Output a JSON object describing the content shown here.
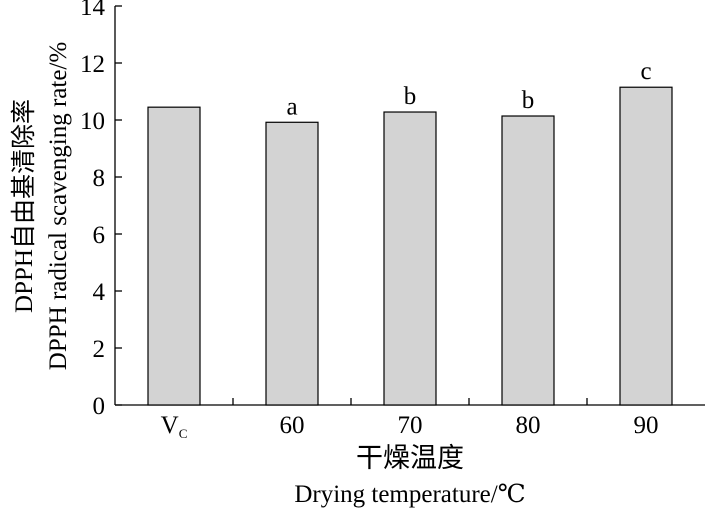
{
  "chart_data": {
    "type": "bar",
    "categories": [
      "Vc",
      "60",
      "70",
      "80",
      "90"
    ],
    "category_display": [
      {
        "main": "V",
        "sub": "C"
      },
      {
        "main": "60",
        "sub": ""
      },
      {
        "main": "70",
        "sub": ""
      },
      {
        "main": "80",
        "sub": ""
      },
      {
        "main": "90",
        "sub": ""
      }
    ],
    "values": [
      10.45,
      9.92,
      10.28,
      10.14,
      11.15
    ],
    "significance_labels": [
      "",
      "a",
      "b",
      "b",
      "c"
    ],
    "ylim": [
      0,
      14
    ],
    "yticks": [
      0,
      2,
      4,
      6,
      8,
      10,
      12,
      14
    ],
    "xlabel_zh": "干燥温度",
    "xlabel_en": "Drying temperature/℃",
    "ylabel_zh": "DPPH自由基清除率",
    "ylabel_en": "DPPH radical scavenging rate/%",
    "bar_color": "#d3d3d3",
    "edge_color": "#000000",
    "grid": false,
    "legend": "none"
  }
}
